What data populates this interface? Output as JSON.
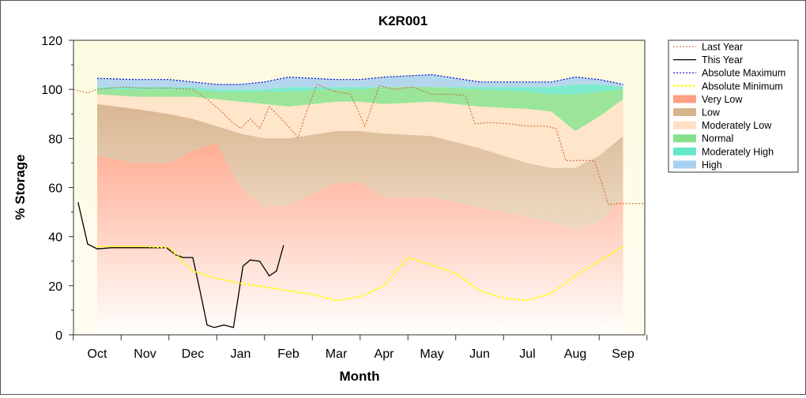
{
  "chart_data": {
    "type": "area",
    "title": "K2R001",
    "xlabel": "Month",
    "ylabel": "% Storage",
    "ylim": [
      0,
      120
    ],
    "yticks": [
      0,
      20,
      40,
      60,
      80,
      100,
      120
    ],
    "categories": [
      "Oct",
      "Nov",
      "Dec",
      "Jan",
      "Feb",
      "Mar",
      "Apr",
      "May",
      "Jun",
      "Jul",
      "Aug",
      "Sep"
    ],
    "grid": false,
    "legend_position": "right",
    "band_x": [
      0,
      0.8,
      1.5,
      2,
      2.5,
      3,
      3.5,
      4,
      5,
      5.5,
      6,
      7,
      8,
      9,
      9.5,
      10,
      10.5,
      11
    ],
    "bands": [
      {
        "name": "Very Low",
        "color": "#ff9f84",
        "upper": [
          73,
          70,
          70,
          75,
          78,
          60,
          52,
          53,
          62,
          62,
          56,
          56,
          52,
          48,
          46,
          43,
          46,
          56
        ]
      },
      {
        "name": "Low",
        "color": "#d8b38c",
        "upper": [
          94,
          92,
          90,
          88,
          85,
          82,
          80,
          80,
          83,
          83,
          82,
          81,
          76,
          70,
          68,
          68,
          73,
          81
        ]
      },
      {
        "name": "Moderately Low",
        "color": "#ffe0c4",
        "upper": [
          98,
          97,
          97,
          97,
          96,
          95,
          94,
          93,
          95,
          95,
          94,
          95,
          93,
          92,
          91,
          83,
          89,
          96
        ]
      },
      {
        "name": "Normal",
        "color": "#88e08c",
        "upper": [
          100,
          100,
          100,
          100,
          99,
          99,
          99,
          99,
          100,
          100,
          101,
          101,
          100,
          99,
          98,
          98,
          99,
          100
        ]
      },
      {
        "name": "Moderately High",
        "color": "#66e8c8",
        "upper": [
          101,
          101,
          101,
          101,
          100,
          100,
          100,
          101,
          101,
          101,
          101,
          101,
          101,
          101,
          101,
          102,
          102,
          101
        ]
      },
      {
        "name": "High",
        "color": "#a8d0f0",
        "upper": [
          104.5,
          104,
          104,
          103,
          102,
          102,
          103,
          105,
          104,
          104,
          105,
          106,
          103,
          103,
          103,
          105,
          104,
          102
        ]
      }
    ],
    "series": [
      {
        "name": "Last Year",
        "color": "#c8602a",
        "x": [
          -0.5,
          -0.2,
          0,
          0.5,
          1,
          1.5,
          2,
          2.3,
          2.6,
          2.8,
          3,
          3.2,
          3.4,
          3.6,
          3.9,
          4.2,
          4.4,
          4.6,
          4.9,
          5.3,
          5.6,
          5.9,
          6.2,
          6.6,
          7,
          7.4,
          7.7,
          7.9,
          8.2,
          8.6,
          9.0,
          9.4,
          9.6,
          9.8,
          10.0,
          10.2,
          10.4,
          10.7,
          10.9,
          11.2,
          11.5
        ],
        "y": [
          100,
          98.5,
          100,
          101,
          100.5,
          100.5,
          100,
          96,
          91,
          87,
          84,
          88,
          84,
          93,
          87,
          80.5,
          92,
          102,
          99.5,
          98,
          85,
          101.5,
          100,
          101,
          98,
          98,
          97.5,
          86,
          86.5,
          86,
          85,
          85,
          84,
          71,
          71,
          71,
          71,
          53,
          53.5,
          53.5,
          53.5
        ]
      },
      {
        "name": "This Year",
        "color": "#000000",
        "x": [
          -0.4,
          -0.2,
          0,
          0.3,
          0.7,
          1.0,
          1.25,
          1.45,
          1.65,
          1.8,
          2.0,
          2.15,
          2.3,
          2.45,
          2.65,
          2.85,
          3.05,
          3.2,
          3.4,
          3.6,
          3.75,
          3.9
        ],
        "y": [
          54,
          37,
          35,
          35.5,
          35.5,
          35.5,
          35.5,
          35.5,
          32.5,
          31.5,
          31.5,
          18,
          4,
          3,
          4,
          3,
          28,
          30.5,
          30,
          24,
          26,
          36.5
        ]
      },
      {
        "name": "Absolute Maximum",
        "color": "#0000cc",
        "x": [
          0,
          0.8,
          1.5,
          2,
          2.5,
          3,
          3.5,
          4,
          5,
          5.5,
          6,
          7,
          8,
          9,
          9.5,
          10,
          10.5,
          11
        ],
        "y": [
          104.5,
          104,
          104,
          103,
          102,
          102,
          103,
          105,
          104,
          104,
          105,
          106,
          103,
          103,
          103,
          105,
          104,
          102
        ]
      },
      {
        "name": "Absolute Minimum",
        "color": "#ffff00",
        "x": [
          0,
          0.5,
          1,
          1.5,
          2,
          2.5,
          3,
          3.5,
          4,
          4.5,
          5,
          5.5,
          6,
          6.5,
          7,
          7.5,
          8,
          8.5,
          9,
          9.5,
          10,
          10.5,
          11
        ],
        "y": [
          36,
          36,
          36,
          35.5,
          26,
          23,
          21,
          19.5,
          18,
          16.5,
          14,
          15.5,
          20,
          31.5,
          28.5,
          25,
          18,
          15,
          14,
          17,
          24,
          30,
          36
        ]
      }
    ]
  }
}
